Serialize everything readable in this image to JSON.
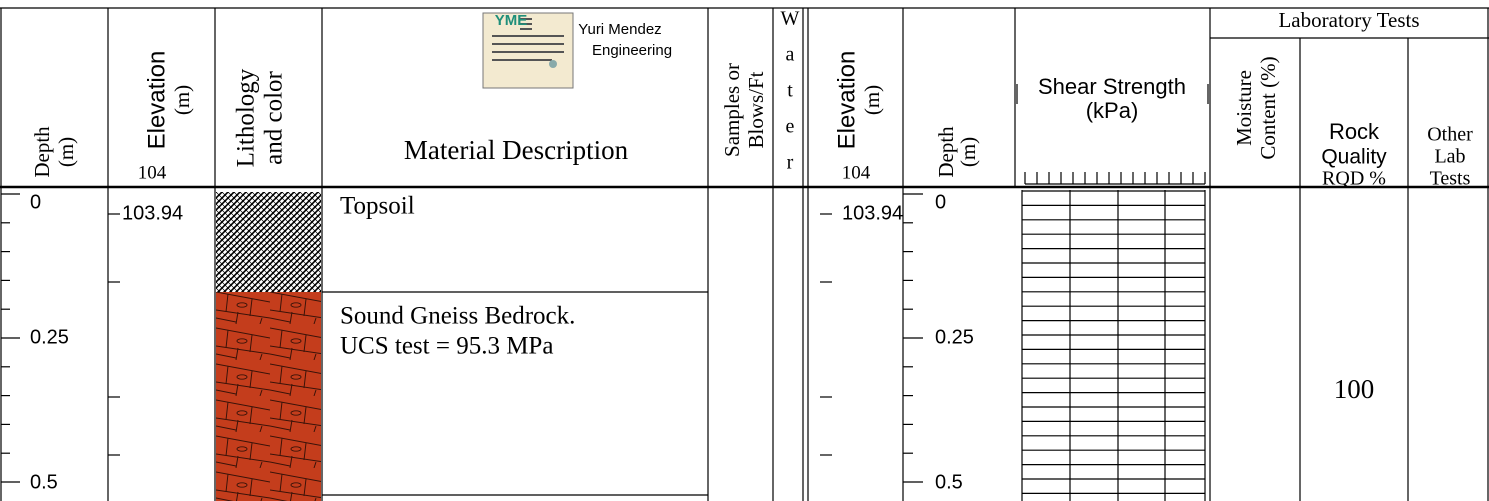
{
  "header": {
    "logo": "YME",
    "company": [
      "Yuri Mendez",
      "Engineering"
    ],
    "depth": [
      "Depth",
      "(m)"
    ],
    "elevation": [
      "Elevation",
      "(m)"
    ],
    "elevation_value": "104",
    "lithology": [
      "Lithology",
      "and color"
    ],
    "material_description": "Material Description",
    "samples": [
      "Samples or",
      "Blows/Ft"
    ],
    "water": [
      "W",
      "a",
      "t",
      "e",
      "r"
    ],
    "elevation_2": [
      "Elevation",
      "(m)"
    ],
    "elevation_2_value": "104",
    "depth_2": [
      "Depth",
      "(m)"
    ],
    "shear_strength": [
      "Shear Strength",
      "(kPa)"
    ],
    "laboratory_tests": "Laboratory Tests",
    "moisture": [
      "Moisture",
      "Content (%)"
    ],
    "rock_quality": [
      "Rock",
      "Quality",
      "RQD %"
    ],
    "other_lab_tests": [
      "Other",
      "Lab",
      "Tests"
    ]
  },
  "body": {
    "depth_labels": [
      "0",
      "0.25",
      "0.5"
    ],
    "elevation_label": "103.94",
    "layers": [
      {
        "description": [
          "Topsoil"
        ]
      },
      {
        "description": [
          "Sound Gneiss Bedrock.",
          "UCS test = 95.3 MPa"
        ]
      }
    ],
    "rqd": "100"
  }
}
